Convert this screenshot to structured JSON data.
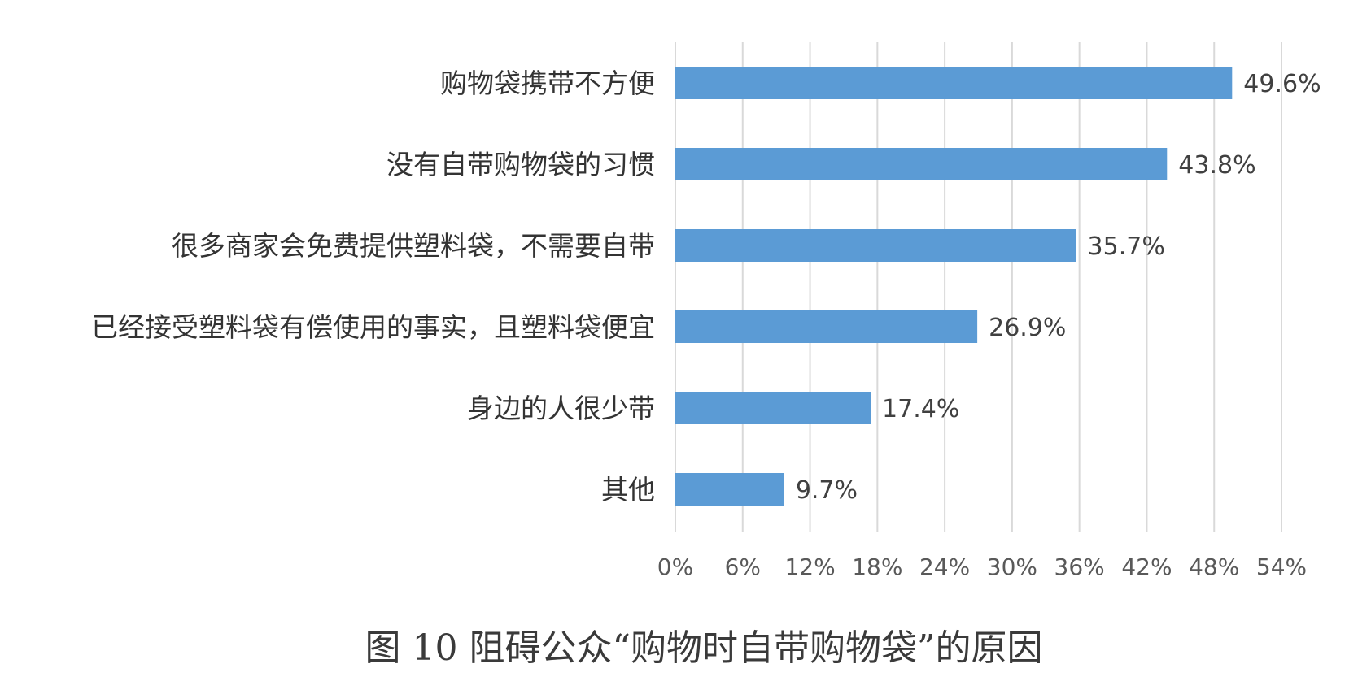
{
  "chart_data": {
    "type": "bar",
    "orientation": "horizontal",
    "categories": [
      "购物袋携带不方便",
      "没有自带购物袋的习惯",
      "很多商家会免费提供塑料袋，不需要自带",
      "已经接受塑料袋有偿使用的事实，且塑料袋便宜",
      "身边的人很少带",
      "其他"
    ],
    "values": [
      49.6,
      43.8,
      35.7,
      26.9,
      17.4,
      9.7
    ],
    "value_labels": [
      "49.6%",
      "43.8%",
      "35.7%",
      "26.9%",
      "17.4%",
      "9.7%"
    ],
    "xlim": [
      0,
      54
    ],
    "x_ticks": [
      0,
      6,
      12,
      18,
      24,
      30,
      36,
      42,
      48,
      54
    ],
    "x_tick_labels": [
      "0%",
      "6%",
      "12%",
      "18%",
      "24%",
      "30%",
      "36%",
      "42%",
      "48%",
      "54%"
    ],
    "title": "图 10 阻碍公众“购物时自带购物袋”的原因",
    "xlabel": "",
    "ylabel": "",
    "grid": true,
    "legend": "none",
    "bar_color": "#5b9bd5",
    "grid_color": "#d9d9d9"
  }
}
